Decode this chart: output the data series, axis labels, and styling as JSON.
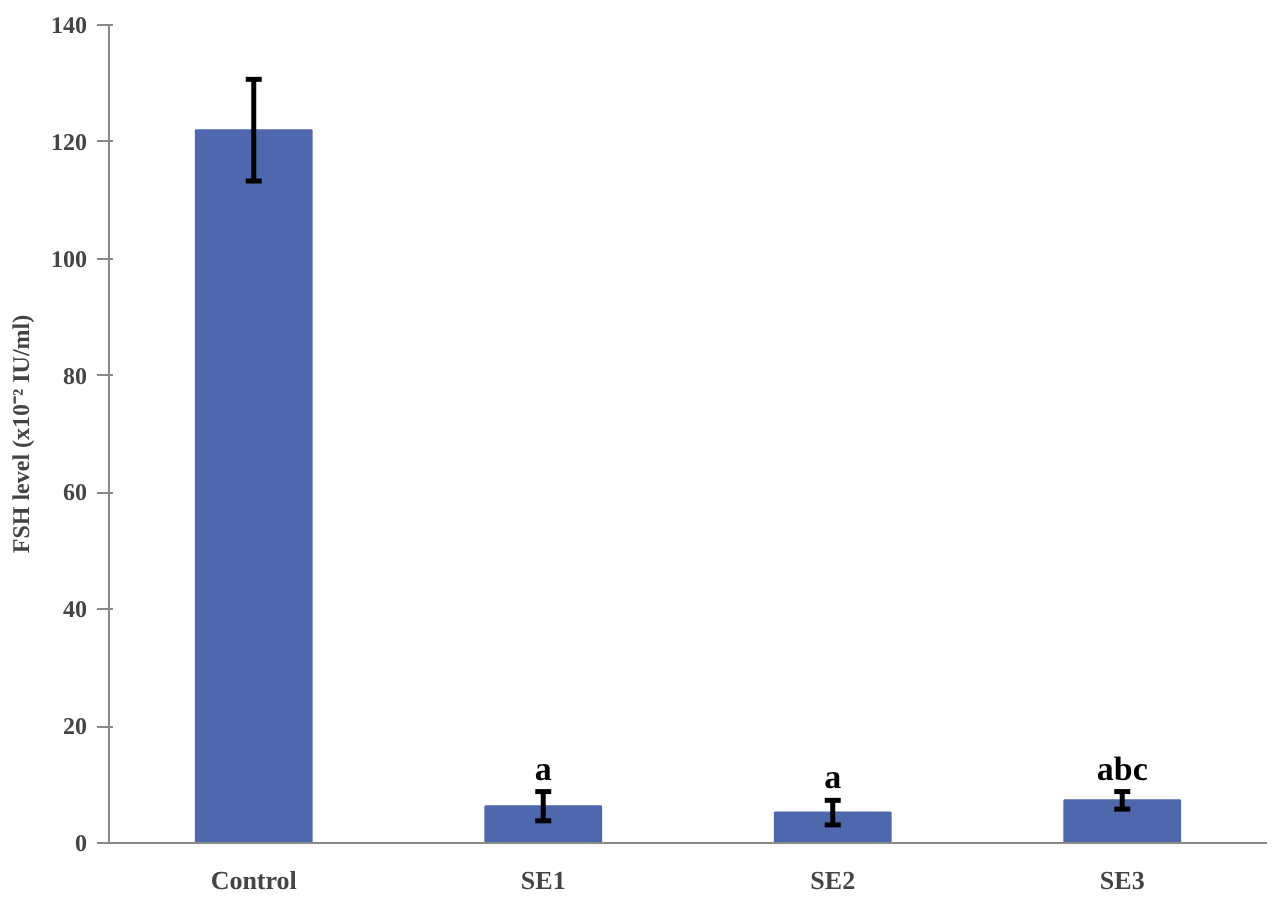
{
  "chart_data": {
    "type": "bar",
    "ylabel": "FSH level (x10⁻² IU/ml)",
    "categories": [
      "Control",
      "SE1",
      "SE2",
      "SE3"
    ],
    "values": [
      122,
      6.3,
      5.2,
      7.3
    ],
    "errors": [
      8.7,
      2.5,
      2.1,
      1.5
    ],
    "color": "#4f67ad",
    "ylim": [
      0,
      140
    ],
    "yticks": [
      0,
      20,
      40,
      60,
      80,
      100,
      120,
      140
    ],
    "grid": false,
    "annotations": [
      {
        "text": "a",
        "x": "SE1",
        "y": 8.8
      },
      {
        "text": "a",
        "x": "SE2",
        "y": 7.3
      },
      {
        "text": "abc",
        "x": "SE3",
        "y": 8.8
      }
    ]
  }
}
